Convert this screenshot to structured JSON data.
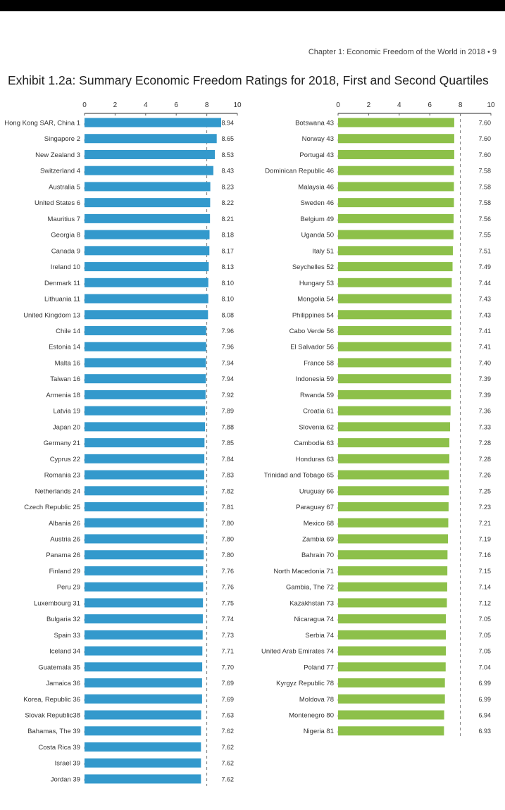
{
  "header": {
    "text": "Chapter 1: Economic Freedom of the World in 2018  •  9"
  },
  "chart_data": {
    "type": "bar",
    "orientation": "horizontal",
    "title": "Exhibit 1.2a: Summary Economic Freedom Ratings for 2018, First and Second Quartiles",
    "xlim": [
      0,
      10
    ],
    "xticks": [
      "0",
      "2",
      "4",
      "6",
      "8",
      "10"
    ],
    "reference_line": 8,
    "panels": [
      {
        "color": "#3399cc",
        "categories": [
          "Hong Kong SAR, China  1",
          "Singapore  2",
          "New Zealand  3",
          "Switzerland  4",
          "Australia  5",
          "United States  6",
          "Mauritius  7",
          "Georgia  8",
          "Canada  9",
          "Ireland  10",
          "Denmark  11",
          "Lithuania  11",
          "United Kingdom  13",
          "Chile  14",
          "Estonia  14",
          "Malta  16",
          "Taiwan  16",
          "Armenia  18",
          "Latvia  19",
          "Japan  20",
          "Germany  21",
          "Cyprus  22",
          "Romania  23",
          "Netherlands  24",
          "Czech Republic  25",
          "Albania  26",
          "Austria  26",
          "Panama  26",
          "Finland  29",
          "Peru  29",
          "Luxembourg  31",
          "Bulgaria  32",
          "Spain  33",
          "Iceland  34",
          "Guatemala  35",
          "Jamaica  36",
          "Korea, Republic  36",
          "Slovak Republic38",
          "Bahamas, The  39",
          "Costa Rica  39",
          "Israel  39",
          "Jordan  39"
        ],
        "values": [
          8.94,
          8.65,
          8.53,
          8.43,
          8.23,
          8.22,
          8.21,
          8.18,
          8.17,
          8.13,
          8.1,
          8.1,
          8.08,
          7.96,
          7.96,
          7.94,
          7.94,
          7.92,
          7.89,
          7.88,
          7.85,
          7.84,
          7.83,
          7.82,
          7.81,
          7.8,
          7.8,
          7.8,
          7.76,
          7.76,
          7.75,
          7.74,
          7.73,
          7.71,
          7.7,
          7.69,
          7.69,
          7.63,
          7.62,
          7.62,
          7.62,
          7.62
        ]
      },
      {
        "color": "#8dc04a",
        "categories": [
          "Botswana  43",
          "Norway  43",
          "Portugal  43",
          "Dominican Republic  46",
          "Malaysia  46",
          "Sweden  46",
          "Belgium  49",
          "Uganda  50",
          "Italy  51",
          "Seychelles  52",
          "Hungary  53",
          "Mongolia  54",
          "Philippines  54",
          "Cabo Verde  56",
          "El Salvador  56",
          "France  58",
          "Indonesia  59",
          "Rwanda  59",
          "Croatia  61",
          "Slovenia  62",
          "Cambodia  63",
          "Honduras  63",
          "Trinidad and Tobago  65",
          "Uruguay  66",
          "Paraguay  67",
          "Mexico  68",
          "Zambia  69",
          "Bahrain  70",
          "North Macedonia  71",
          "Gambia, The  72",
          "Kazakhstan  73",
          "Nicaragua  74",
          "Serbia  74",
          "United Arab Emirates  74",
          "Poland  77",
          "Kyrgyz Republic  78",
          "Moldova  78",
          "Montenegro  80",
          "Nigeria  81"
        ],
        "values": [
          7.6,
          7.6,
          7.6,
          7.58,
          7.58,
          7.58,
          7.56,
          7.55,
          7.51,
          7.49,
          7.44,
          7.43,
          7.43,
          7.41,
          7.41,
          7.4,
          7.39,
          7.39,
          7.36,
          7.33,
          7.28,
          7.28,
          7.26,
          7.25,
          7.23,
          7.21,
          7.19,
          7.16,
          7.15,
          7.14,
          7.12,
          7.05,
          7.05,
          7.05,
          7.04,
          6.99,
          6.99,
          6.94,
          6.93
        ]
      }
    ]
  }
}
